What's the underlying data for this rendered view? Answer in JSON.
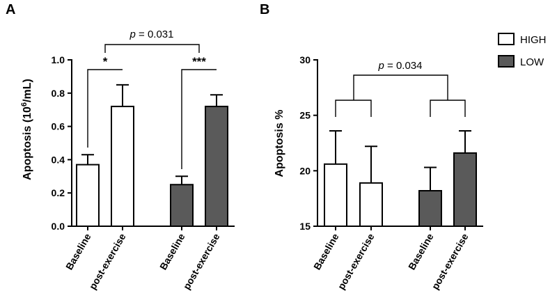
{
  "colors": {
    "HIGH": "#ffffff",
    "LOW": "#5a5a5a",
    "stroke": "#000000"
  },
  "legend": [
    {
      "label": "HIGH",
      "color": "#ffffff"
    },
    {
      "label": "LOW",
      "color": "#5a5a5a"
    }
  ],
  "chart_data": [
    {
      "panel": "A",
      "type": "bar",
      "ylabel_prefix": "Apoptosis (10",
      "ylabel_sup": "6",
      "ylabel_suffix": "/mL)",
      "ylim": [
        0,
        1.0
      ],
      "yticks": [
        "0.0",
        "0.2",
        "0.4",
        "0.6",
        "0.8",
        "1.0"
      ],
      "categories": [
        "Baseline",
        "post-exercise",
        "Baseline",
        "post-exercise"
      ],
      "bars": [
        {
          "group": "HIGH",
          "category": "Baseline",
          "value": 0.37,
          "error": 0.06
        },
        {
          "group": "HIGH",
          "category": "post-exercise",
          "value": 0.72,
          "error": 0.13
        },
        {
          "group": "LOW",
          "category": "Baseline",
          "value": 0.25,
          "error": 0.05
        },
        {
          "group": "LOW",
          "category": "post-exercise",
          "value": 0.72,
          "error": 0.07
        }
      ],
      "annotations": [
        {
          "type": "bracket",
          "from": 0,
          "to": 1,
          "label": "*"
        },
        {
          "type": "bracket",
          "from": 2,
          "to": 3,
          "label": "***"
        },
        {
          "type": "bracket",
          "from": "pair-0-1",
          "to": "pair-2-3",
          "label_p": "p",
          "label_value": " = 0.031"
        }
      ]
    },
    {
      "panel": "B",
      "type": "bar",
      "ylabel": "Apoptosis %",
      "ylim": [
        15,
        30
      ],
      "yticks": [
        "15",
        "20",
        "25",
        "30"
      ],
      "categories": [
        "Baseline",
        "post-exercise",
        "Baseline",
        "post-exercise"
      ],
      "bars": [
        {
          "group": "HIGH",
          "category": "Baseline",
          "value": 20.6,
          "error": 3.0
        },
        {
          "group": "HIGH",
          "category": "post-exercise",
          "value": 18.9,
          "error": 3.3
        },
        {
          "group": "LOW",
          "category": "Baseline",
          "value": 18.2,
          "error": 2.1
        },
        {
          "group": "LOW",
          "category": "post-exercise",
          "value": 21.6,
          "error": 2.0
        }
      ],
      "annotations": [
        {
          "type": "bracket",
          "from": 0,
          "to": 1,
          "label": ""
        },
        {
          "type": "bracket",
          "from": 2,
          "to": 3,
          "label": ""
        },
        {
          "type": "bracket",
          "from": "pair-0-1",
          "to": "pair-2-3",
          "label_p": "p",
          "label_value": " = 0.034"
        }
      ]
    }
  ]
}
